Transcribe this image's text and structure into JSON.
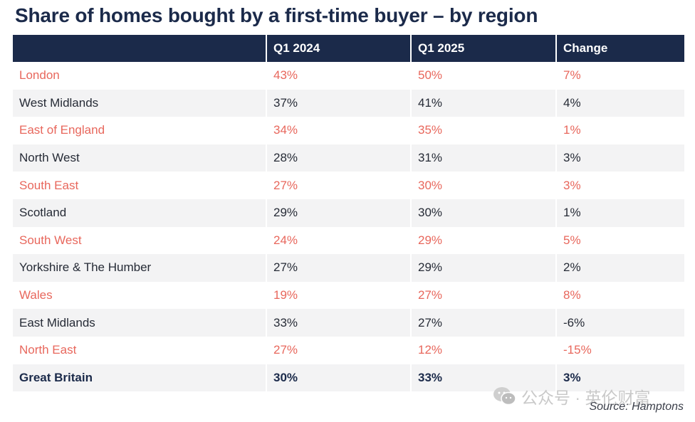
{
  "chart_data": {
    "type": "table",
    "title": "Share of homes bought by a first-time buyer – by region",
    "columns": [
      "",
      "Q1 2024",
      "Q1 2025",
      "Change"
    ],
    "rows": [
      {
        "region": "London",
        "q1_2024": "43%",
        "q1_2025": "50%",
        "change": "7%"
      },
      {
        "region": "West Midlands",
        "q1_2024": "37%",
        "q1_2025": "41%",
        "change": "4%"
      },
      {
        "region": "East of England",
        "q1_2024": "34%",
        "q1_2025": "35%",
        "change": "1%"
      },
      {
        "region": "North West",
        "q1_2024": "28%",
        "q1_2025": "31%",
        "change": "3%"
      },
      {
        "region": "South East",
        "q1_2024": "27%",
        "q1_2025": "30%",
        "change": "3%"
      },
      {
        "region": "Scotland",
        "q1_2024": "29%",
        "q1_2025": "30%",
        "change": "1%"
      },
      {
        "region": "South West",
        "q1_2024": "24%",
        "q1_2025": "29%",
        "change": "5%"
      },
      {
        "region": "Yorkshire & The Humber",
        "q1_2024": "27%",
        "q1_2025": "29%",
        "change": "2%"
      },
      {
        "region": "Wales",
        "q1_2024": "19%",
        "q1_2025": "27%",
        "change": "8%"
      },
      {
        "region": "East Midlands",
        "q1_2024": "33%",
        "q1_2025": "27%",
        "change": "-6%"
      },
      {
        "region": "North East",
        "q1_2024": "27%",
        "q1_2025": "12%",
        "change": "-15%"
      }
    ],
    "total": {
      "region": "Great Britain",
      "q1_2024": "30%",
      "q1_2025": "33%",
      "change": "3%"
    }
  },
  "watermark": "公众号 · 英伦财富",
  "source": "Source: Hamptons",
  "colors": {
    "header_bg": "#1b2a4a",
    "accent_text": "#e8675c",
    "stripe_bg": "#f3f3f4"
  }
}
